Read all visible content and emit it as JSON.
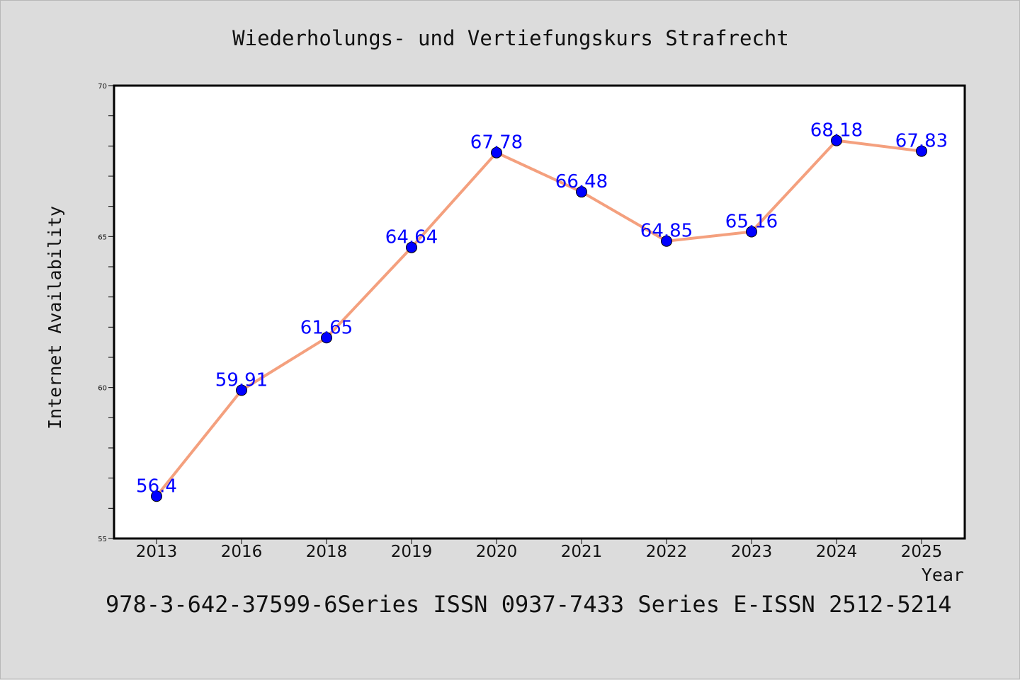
{
  "chart_data": {
    "type": "line",
    "title": "Wiederholungs- und Vertiefungskurs Strafrecht",
    "xlabel": "Year",
    "ylabel": "Internet Availability",
    "categories": [
      "2013",
      "2016",
      "2018",
      "2019",
      "2020",
      "2021",
      "2022",
      "2023",
      "2024",
      "2025"
    ],
    "series": [
      {
        "values": [
          56.4,
          59.91,
          61.65,
          64.64,
          67.78,
          66.48,
          64.85,
          65.16,
          68.18,
          67.83
        ],
        "data_labels": [
          "56.4",
          "59.91",
          "61.65",
          "64.64",
          "67.78",
          "66.48",
          "64.85",
          "65.16",
          "68.18",
          "67.83"
        ],
        "line_color": "#f4a07e",
        "marker_color": "#0000ff",
        "label_color": "#0000ff"
      }
    ],
    "ylim": [
      55,
      70
    ],
    "y_ticks": [
      "55",
      "60",
      "65",
      "70"
    ],
    "grid": false,
    "legend": "none"
  },
  "footer": {
    "text": "978-3-642-37599-6Series ISSN 0937-7433 Series E-ISSN 2512-5214"
  },
  "colors": {
    "background": "#dcdcdc",
    "plot_background": "#ffffff",
    "axis": "#000000"
  }
}
